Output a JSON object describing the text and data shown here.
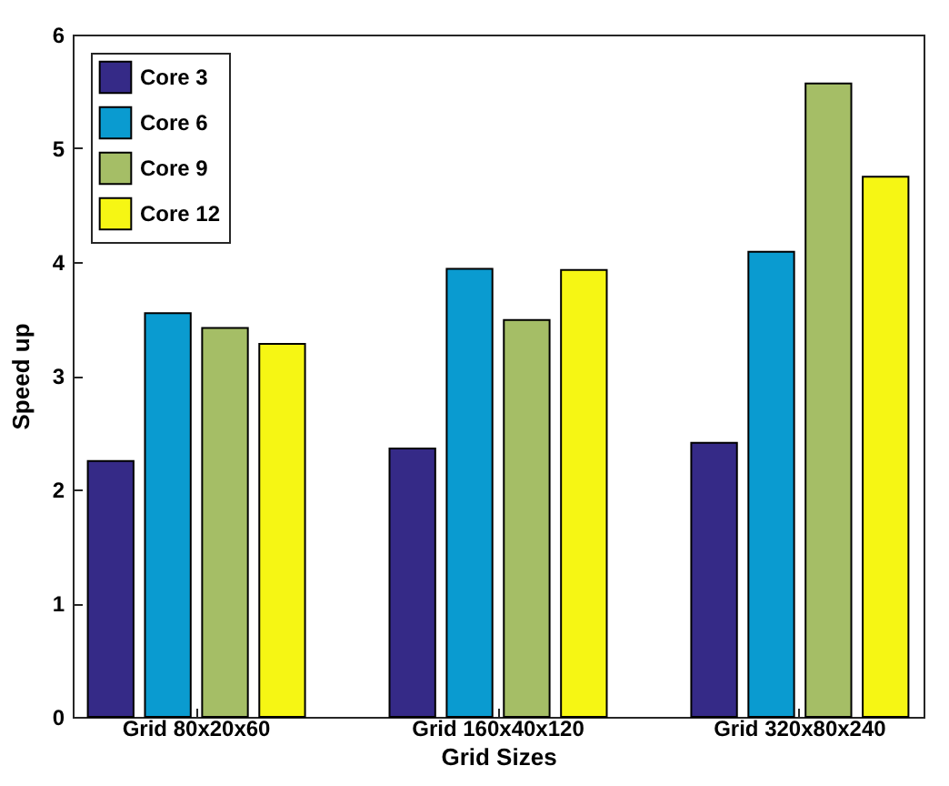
{
  "chart_data": {
    "type": "bar",
    "xlabel": "Grid Sizes",
    "ylabel": "Speed up",
    "categories": [
      "Grid 80x20x60",
      "Grid 160x40x120",
      "Grid 320x80x240"
    ],
    "series": [
      {
        "name": "Core 3",
        "color": "#352a87",
        "values": [
          2.25,
          2.36,
          2.41
        ]
      },
      {
        "name": "Core 6",
        "color": "#0a9bd0",
        "values": [
          3.55,
          3.94,
          4.09
        ]
      },
      {
        "name": "Core 9",
        "color": "#a5be66",
        "values": [
          3.42,
          3.49,
          5.57
        ]
      },
      {
        "name": "Core 12",
        "color": "#f6f614",
        "values": [
          3.28,
          3.93,
          4.75
        ]
      }
    ],
    "ylim": [
      0,
      6
    ],
    "yticks": [
      0,
      1,
      2,
      3,
      4,
      5,
      6
    ],
    "grid": false,
    "legend": "top left"
  }
}
